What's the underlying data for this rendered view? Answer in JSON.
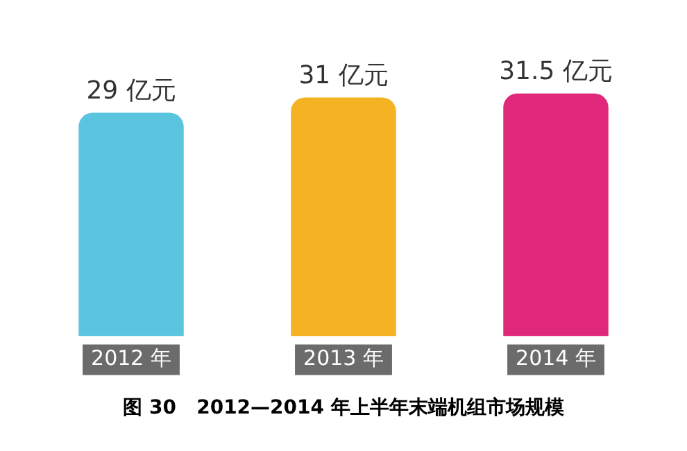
{
  "chart_data": {
    "type": "bar",
    "title": "图 30   2012—2014 年上半年末端机组市场规模",
    "categories": [
      "2012 年",
      "2013 年",
      "2014 年"
    ],
    "values": [
      29,
      31,
      31.5
    ],
    "colors": [
      "#5bc5e0",
      "#f5b324",
      "#e0287a"
    ],
    "value_labels": [
      "29 亿元",
      "31 亿元",
      "31.5 亿元"
    ],
    "grid": false,
    "legend": false
  }
}
